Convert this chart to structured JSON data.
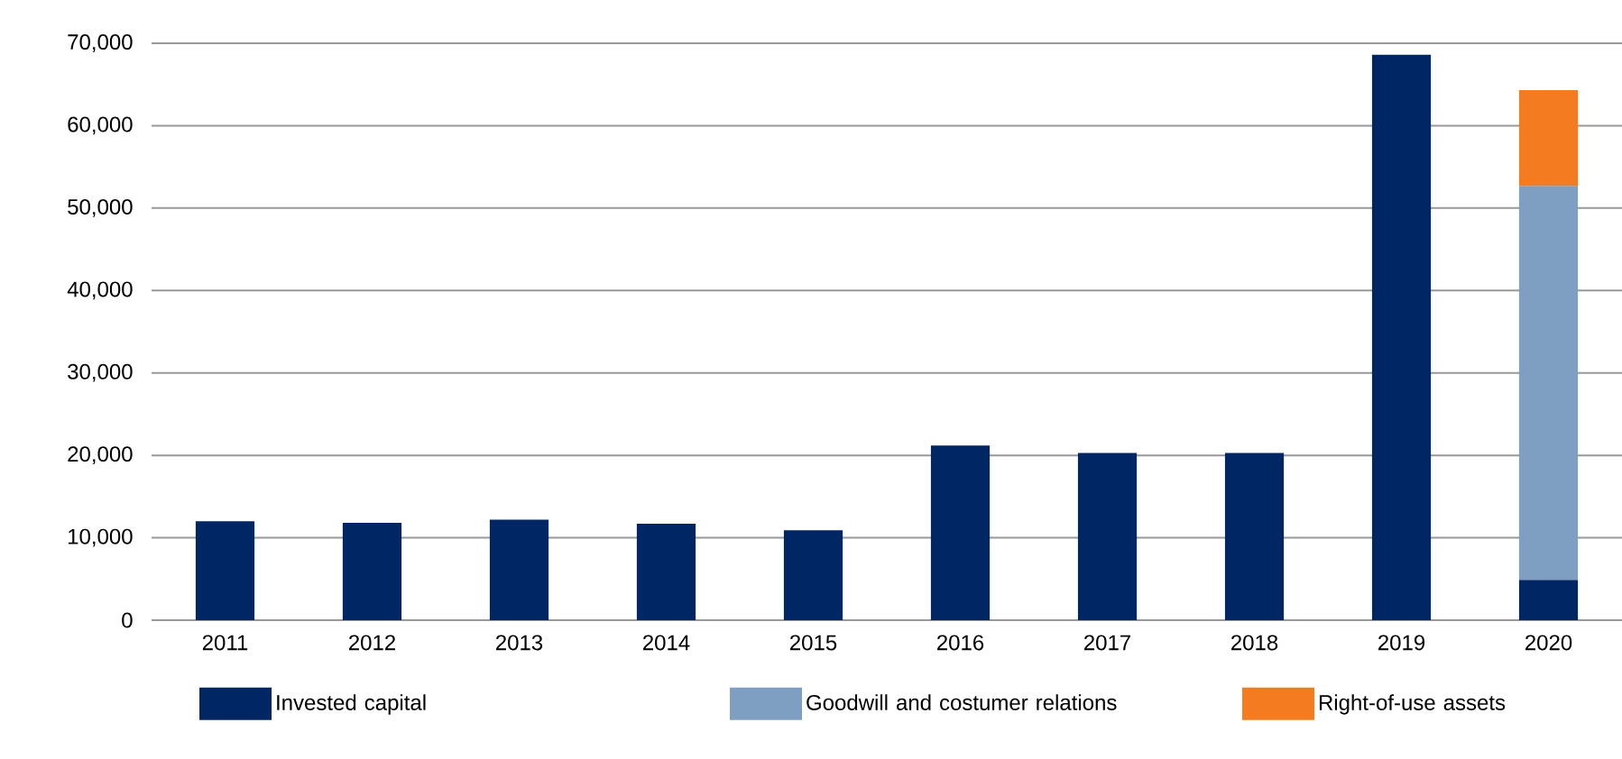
{
  "chart_data": {
    "type": "bar",
    "stacked": true,
    "categories": [
      "2011",
      "2012",
      "2013",
      "2014",
      "2015",
      "2016",
      "2017",
      "2018",
      "2019",
      "2020"
    ],
    "series": [
      {
        "name": "Invested capital",
        "color": "#002664",
        "values": [
          12000,
          11800,
          12200,
          11700,
          10900,
          21200,
          20300,
          20300,
          68600,
          4900
        ]
      },
      {
        "name": "Goodwill and costumer relations",
        "color": "#7f9fc2",
        "values": [
          null,
          null,
          null,
          null,
          null,
          null,
          null,
          null,
          null,
          47800
        ]
      },
      {
        "name": "Right-of-use assets",
        "color": "#f47b20",
        "values": [
          null,
          null,
          null,
          null,
          null,
          null,
          null,
          null,
          null,
          11600
        ]
      }
    ],
    "ylim": [
      0,
      70000
    ],
    "yticks": [
      0,
      {
        "value": 10000,
        "label": "10,000"
      },
      {
        "value": 20000,
        "label": "20,000"
      },
      {
        "value": 30000,
        "label": "30,000"
      },
      {
        "value": 40000,
        "label": "40,000"
      },
      {
        "value": 50000,
        "label": "50,000"
      },
      {
        "value": 60000,
        "label": "60,000"
      },
      {
        "value": 70000,
        "label": "70,000"
      }
    ],
    "grid": "y",
    "legend": "bottom"
  }
}
